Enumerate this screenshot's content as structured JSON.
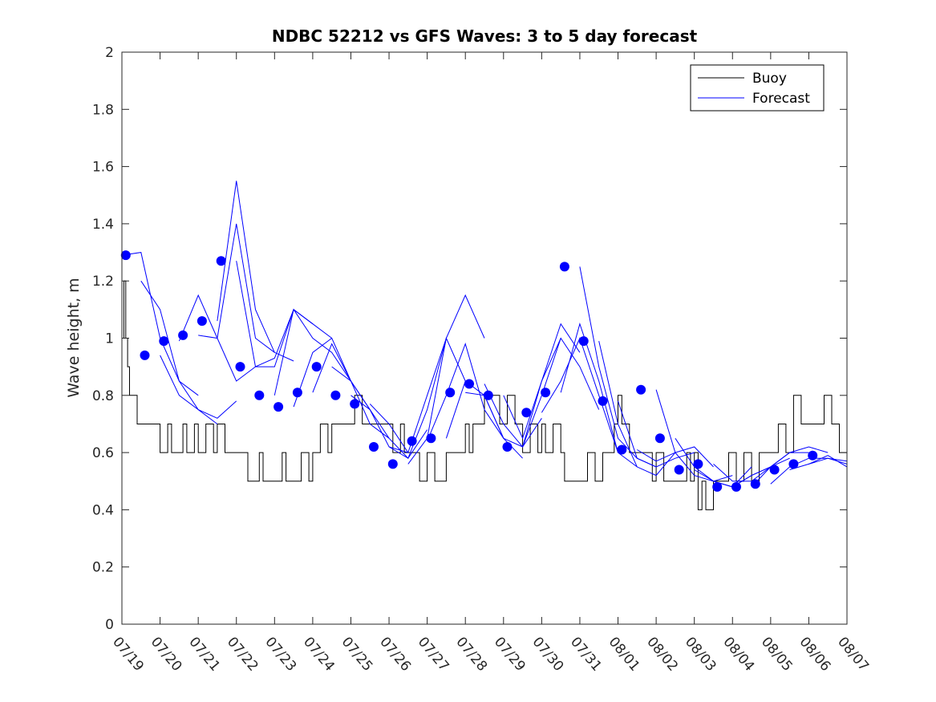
{
  "chart_data": {
    "type": "line",
    "title": "NDBC 52212 vs GFS Waves: 3 to 5 day forecast",
    "xlabel": "",
    "ylabel": "Wave height, m",
    "x_tick_labels": [
      "07/19",
      "07/20",
      "07/21",
      "07/22",
      "07/23",
      "07/24",
      "07/25",
      "07/26",
      "07/27",
      "07/28",
      "07/29",
      "07/30",
      "07/31",
      "08/01",
      "08/02",
      "08/03",
      "08/04",
      "08/05",
      "08/06",
      "08/07"
    ],
    "xlim_days": [
      0,
      19
    ],
    "ylim": [
      0,
      2
    ],
    "y_ticks": [
      0,
      0.2,
      0.4,
      0.6,
      0.8,
      1,
      1.2,
      1.4,
      1.6,
      1.8,
      2
    ],
    "y_tick_labels": [
      "0",
      "0.2",
      "0.4",
      "0.6",
      "0.8",
      "1",
      "1.2",
      "1.4",
      "1.6",
      "1.8",
      "2"
    ],
    "grid": false,
    "legend_position": "top-right",
    "legend": [
      "Buoy",
      "Forecast"
    ],
    "colors": {
      "buoy": "#000000",
      "forecast": "#0000ff"
    },
    "buoy": {
      "name": "Buoy",
      "x": [
        0,
        0.05,
        0.1,
        0.15,
        0.2,
        0.3,
        0.4,
        0.5,
        0.6,
        0.7,
        1.0,
        1.2,
        1.3,
        1.6,
        1.7,
        1.9,
        2.0,
        2.2,
        2.4,
        2.5,
        2.7,
        2.9,
        3.0,
        3.3,
        3.6,
        3.7,
        4.0,
        4.1,
        4.2,
        4.3,
        4.5,
        4.7,
        4.9,
        5.0,
        5.2,
        5.4,
        5.5,
        5.7,
        6.0,
        6.1,
        6.3,
        6.6,
        6.8,
        7.0,
        7.1,
        7.3,
        7.4,
        7.6,
        7.8,
        8.0,
        8.2,
        8.3,
        8.5,
        8.7,
        8.9,
        9.0,
        9.1,
        9.2,
        9.4,
        9.5,
        9.7,
        9.9,
        10.1,
        10.3,
        10.5,
        10.7,
        10.9,
        11.0,
        11.1,
        11.3,
        11.5,
        11.6,
        11.8,
        12.0,
        12.2,
        12.4,
        12.6,
        12.8,
        12.9,
        13.0,
        13.1,
        13.3,
        13.5,
        13.7,
        13.9,
        14.0,
        14.2,
        14.4,
        14.6,
        14.8,
        14.9,
        15.0,
        15.1,
        15.2,
        15.3,
        15.5,
        15.7,
        15.8,
        15.9,
        16.1,
        16.3,
        16.5,
        16.7,
        16.9,
        17.0,
        17.2,
        17.4,
        17.6,
        17.8,
        18.0,
        18.2,
        18.4,
        18.6,
        18.8,
        19.0
      ],
      "values": [
        1.0,
        1.2,
        1.0,
        0.9,
        0.8,
        0.8,
        0.7,
        0.7,
        0.7,
        0.7,
        0.6,
        0.7,
        0.6,
        0.7,
        0.6,
        0.7,
        0.6,
        0.7,
        0.6,
        0.7,
        0.6,
        0.6,
        0.6,
        0.5,
        0.6,
        0.5,
        0.5,
        0.5,
        0.6,
        0.5,
        0.5,
        0.6,
        0.5,
        0.6,
        0.7,
        0.6,
        0.7,
        0.7,
        0.7,
        0.8,
        0.7,
        0.7,
        0.7,
        0.7,
        0.6,
        0.7,
        0.6,
        0.6,
        0.5,
        0.6,
        0.5,
        0.5,
        0.6,
        0.6,
        0.6,
        0.7,
        0.6,
        0.7,
        0.7,
        0.8,
        0.8,
        0.7,
        0.8,
        0.7,
        0.6,
        0.7,
        0.6,
        0.7,
        0.6,
        0.7,
        0.6,
        0.5,
        0.5,
        0.5,
        0.6,
        0.5,
        0.6,
        0.6,
        0.7,
        0.8,
        0.7,
        0.6,
        0.6,
        0.6,
        0.5,
        0.6,
        0.5,
        0.5,
        0.5,
        0.6,
        0.5,
        0.6,
        0.4,
        0.5,
        0.4,
        0.5,
        0.5,
        0.5,
        0.6,
        0.5,
        0.6,
        0.5,
        0.6,
        0.6,
        0.6,
        0.7,
        0.6,
        0.8,
        0.7,
        0.7,
        0.7,
        0.8,
        0.7,
        0.6,
        0.6
      ]
    },
    "forecast_runs": [
      {
        "x": [
          0.0,
          0.5,
          1.0,
          1.5,
          2.0
        ],
        "values": [
          1.29,
          1.3,
          1.0,
          0.85,
          0.8
        ]
      },
      {
        "x": [
          0.5,
          1.0,
          1.5,
          2.0,
          2.5
        ],
        "values": [
          1.2,
          1.1,
          0.85,
          0.75,
          0.7
        ]
      },
      {
        "x": [
          1.0,
          1.5,
          2.0,
          2.5,
          3.0
        ],
        "values": [
          0.94,
          0.8,
          0.75,
          0.72,
          0.78
        ]
      },
      {
        "x": [
          1.5,
          2.0,
          2.5,
          3.0,
          3.5
        ],
        "values": [
          0.99,
          1.15,
          1.0,
          0.85,
          0.9
        ]
      },
      {
        "x": [
          2.0,
          2.5,
          3.0,
          3.5,
          4.0
        ],
        "values": [
          1.01,
          1.0,
          1.4,
          1.0,
          0.95
        ]
      },
      {
        "x": [
          2.5,
          3.0,
          3.5,
          4.0,
          4.5
        ],
        "values": [
          1.06,
          1.55,
          1.1,
          0.95,
          0.92
        ]
      },
      {
        "x": [
          3.0,
          3.5,
          4.0,
          4.5,
          5.0
        ],
        "values": [
          1.27,
          0.9,
          0.9,
          1.1,
          1.05
        ]
      },
      {
        "x": [
          3.5,
          4.0,
          4.5,
          5.0,
          5.5
        ],
        "values": [
          0.9,
          0.93,
          1.1,
          1.05,
          1.0
        ]
      },
      {
        "x": [
          4.0,
          4.5,
          5.0,
          5.5,
          6.0
        ],
        "values": [
          0.8,
          1.1,
          1.0,
          0.95,
          0.85
        ]
      },
      {
        "x": [
          4.5,
          5.0,
          5.5,
          6.0,
          6.5
        ],
        "values": [
          0.76,
          0.95,
          1.0,
          0.85,
          0.75
        ]
      },
      {
        "x": [
          5.0,
          5.5,
          6.0,
          6.5,
          7.0
        ],
        "values": [
          0.81,
          0.98,
          0.85,
          0.7,
          0.65
        ]
      },
      {
        "x": [
          5.5,
          6.0,
          6.5,
          7.0,
          7.5
        ],
        "values": [
          0.9,
          0.85,
          0.75,
          0.62,
          0.6
        ]
      },
      {
        "x": [
          6.0,
          6.5,
          7.0,
          7.5,
          8.0
        ],
        "values": [
          0.8,
          0.75,
          0.65,
          0.58,
          0.68
        ]
      },
      {
        "x": [
          6.5,
          7.0,
          7.5,
          8.0,
          8.5
        ],
        "values": [
          0.77,
          0.7,
          0.6,
          0.8,
          1.0
        ]
      },
      {
        "x": [
          7.0,
          7.5,
          8.0,
          8.5,
          9.0
        ],
        "values": [
          0.62,
          0.58,
          0.75,
          1.0,
          0.85
        ]
      },
      {
        "x": [
          7.5,
          8.0,
          8.5,
          9.0,
          9.5
        ],
        "values": [
          0.56,
          0.65,
          1.0,
          1.15,
          1.0
        ]
      },
      {
        "x": [
          8.0,
          8.5,
          9.0,
          9.5,
          10.0
        ],
        "values": [
          0.64,
          0.8,
          0.98,
          0.75,
          0.65
        ]
      },
      {
        "x": [
          8.5,
          9.0,
          9.5,
          10.0,
          10.5
        ],
        "values": [
          0.65,
          0.85,
          0.8,
          0.65,
          0.58
        ]
      },
      {
        "x": [
          9.0,
          9.5,
          10.0,
          10.5,
          11.0
        ],
        "values": [
          0.81,
          0.8,
          0.65,
          0.62,
          0.72
        ]
      },
      {
        "x": [
          9.5,
          10.0,
          10.5,
          11.0,
          11.5
        ],
        "values": [
          0.84,
          0.7,
          0.62,
          0.8,
          1.0
        ]
      },
      {
        "x": [
          10.0,
          10.5,
          11.0,
          11.5,
          12.0
        ],
        "values": [
          0.8,
          0.65,
          0.85,
          1.05,
          0.95
        ]
      },
      {
        "x": [
          10.5,
          11.0,
          11.5,
          12.0,
          12.5
        ],
        "values": [
          0.62,
          0.85,
          1.0,
          0.9,
          0.75
        ]
      },
      {
        "x": [
          11.0,
          11.5,
          12.0,
          12.5,
          13.0
        ],
        "values": [
          0.74,
          0.85,
          1.0,
          0.8,
          0.6
        ]
      },
      {
        "x": [
          11.5,
          12.0,
          12.5,
          13.0,
          13.5
        ],
        "values": [
          0.81,
          1.05,
          0.85,
          0.6,
          0.55
        ]
      },
      {
        "x": [
          12.0,
          12.5,
          13.0,
          13.5,
          14.0
        ],
        "values": [
          1.25,
          0.9,
          0.65,
          0.58,
          0.55
        ]
      },
      {
        "x": [
          12.5,
          13.0,
          13.5,
          14.0,
          14.5
        ],
        "values": [
          0.99,
          0.7,
          0.55,
          0.52,
          0.6
        ]
      },
      {
        "x": [
          13.0,
          13.5,
          14.0,
          14.5,
          15.0
        ],
        "values": [
          0.78,
          0.58,
          0.55,
          0.58,
          0.6
        ]
      },
      {
        "x": [
          13.5,
          14.0,
          14.5,
          15.0,
          15.5
        ],
        "values": [
          0.61,
          0.57,
          0.6,
          0.62,
          0.55
        ]
      },
      {
        "x": [
          14.0,
          14.5,
          15.0,
          15.5,
          16.0
        ],
        "values": [
          0.82,
          0.6,
          0.52,
          0.5,
          0.52
        ]
      },
      {
        "x": [
          14.5,
          15.0,
          15.5,
          16.0,
          16.5
        ],
        "values": [
          0.65,
          0.55,
          0.5,
          0.48,
          0.55
        ]
      },
      {
        "x": [
          15.0,
          15.5,
          16.0,
          16.5,
          17.0
        ],
        "values": [
          0.54,
          0.5,
          0.48,
          0.52,
          0.55
        ]
      },
      {
        "x": [
          15.5,
          16.0,
          16.5,
          17.0,
          17.5
        ],
        "values": [
          0.56,
          0.5,
          0.5,
          0.55,
          0.58
        ]
      },
      {
        "x": [
          16.0,
          16.5,
          17.0,
          17.5,
          18.0
        ],
        "values": [
          0.48,
          0.52,
          0.55,
          0.6,
          0.6
        ]
      },
      {
        "x": [
          16.5,
          17.0,
          17.5,
          18.0,
          18.5
        ],
        "values": [
          0.48,
          0.55,
          0.6,
          0.62,
          0.6
        ]
      },
      {
        "x": [
          17.0,
          17.5,
          18.0,
          18.5,
          19.0
        ],
        "values": [
          0.49,
          0.55,
          0.58,
          0.58,
          0.56
        ]
      },
      {
        "x": [
          17.5,
          18.0,
          18.5,
          19.0
        ],
        "values": [
          0.54,
          0.56,
          0.58,
          0.57
        ]
      },
      {
        "x": [
          18.0,
          18.5,
          19.0
        ],
        "values": [
          0.56,
          0.59,
          0.55
        ]
      }
    ],
    "forecast_points": {
      "name": "Forecast",
      "x": [
        0.1,
        0.6,
        1.1,
        1.6,
        2.1,
        2.6,
        3.1,
        3.6,
        4.1,
        4.6,
        5.1,
        5.6,
        6.1,
        6.6,
        7.1,
        7.6,
        8.1,
        8.6,
        9.1,
        9.6,
        10.1,
        10.6,
        11.1,
        11.6,
        12.1,
        12.6,
        13.1,
        13.6,
        14.1,
        14.6,
        15.1,
        15.6,
        16.1,
        16.6,
        17.1,
        17.6,
        18.1
      ],
      "values": [
        1.29,
        0.94,
        0.99,
        1.01,
        1.06,
        1.27,
        0.9,
        0.8,
        0.76,
        0.81,
        0.9,
        0.8,
        0.77,
        0.62,
        0.56,
        0.64,
        0.65,
        0.81,
        0.84,
        0.8,
        0.62,
        0.74,
        0.81,
        1.25,
        0.99,
        0.78,
        0.61,
        0.82,
        0.65,
        0.54,
        0.56,
        0.48,
        0.48,
        0.49,
        0.54,
        0.56,
        0.59
      ]
    }
  }
}
